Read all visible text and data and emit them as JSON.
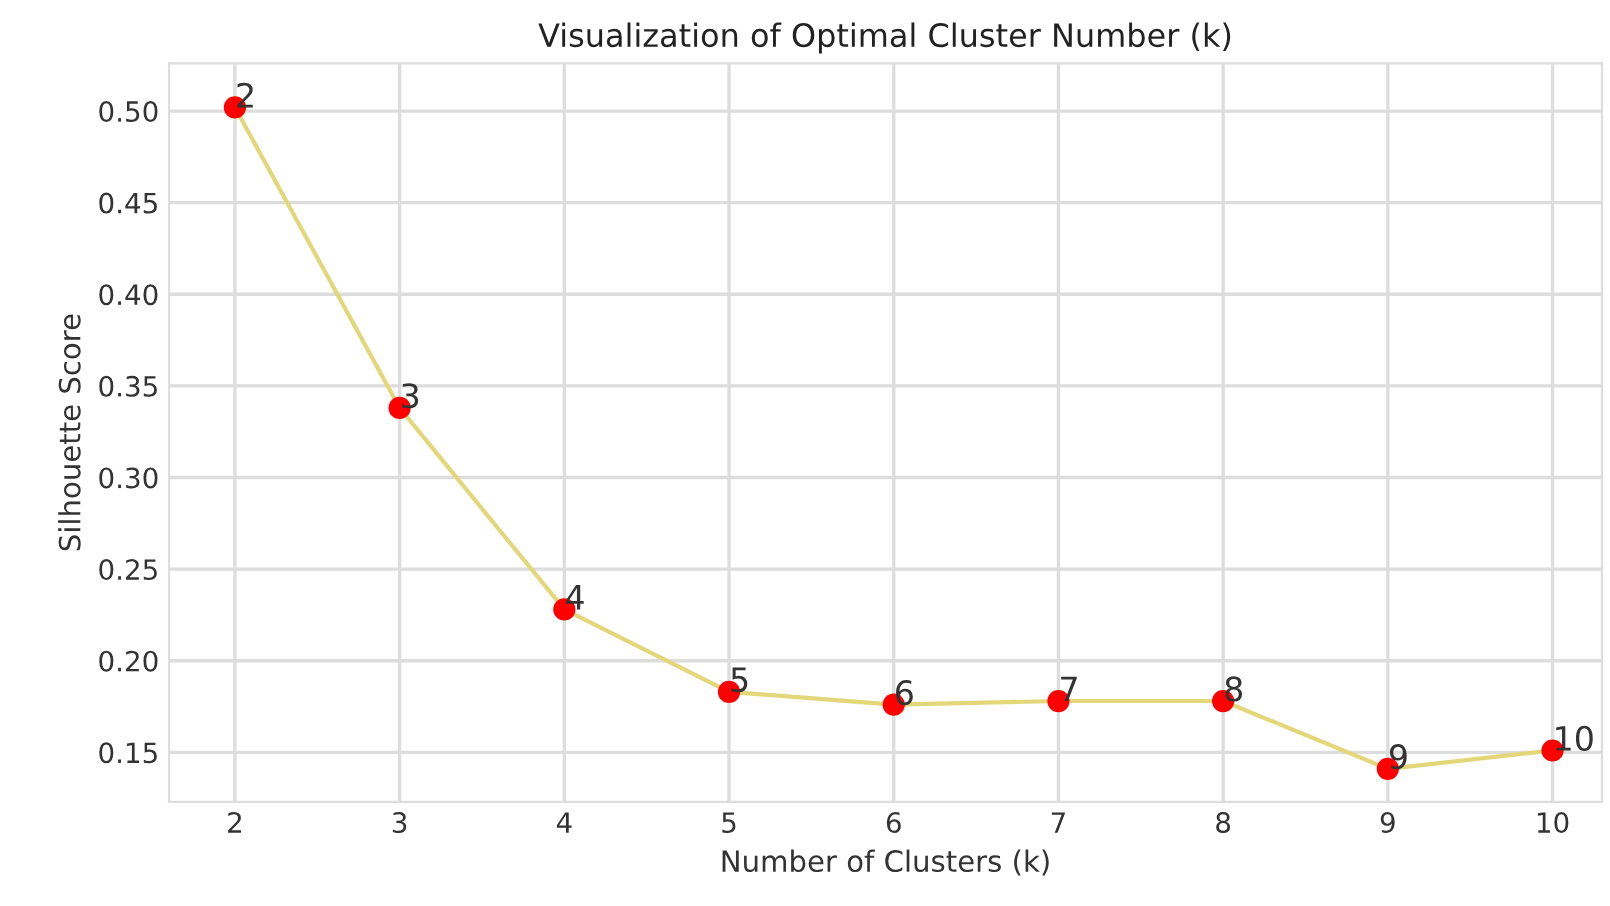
{
  "chart_data": {
    "type": "line",
    "title": "Visualization of Optimal Cluster Number (k)",
    "xlabel": "Number of Clusters (k)",
    "ylabel": "Silhouette Score",
    "x": [
      2,
      3,
      4,
      5,
      6,
      7,
      8,
      9,
      10
    ],
    "series": [
      {
        "color": "#e3d77a",
        "colors": [
          "#ff0000",
          "#ff0000",
          "#ff0000",
          "#ff0000",
          "#ff0000",
          "#ff0000",
          "#ff0000",
          "#ff0000",
          "#ff0000"
        ],
        "values": [
          0.502,
          0.338,
          0.228,
          0.183,
          0.176,
          0.178,
          0.178,
          0.141,
          0.151
        ]
      }
    ],
    "marker": "circle",
    "line_style": "solid",
    "annotations": [
      {
        "text": "2",
        "x": 2,
        "y": 0.502
      },
      {
        "text": "3",
        "x": 3,
        "y": 0.338
      },
      {
        "text": "4",
        "x": 4,
        "y": 0.228
      },
      {
        "text": "5",
        "x": 5,
        "y": 0.183
      },
      {
        "text": "6",
        "x": 6,
        "y": 0.176
      },
      {
        "text": "7",
        "x": 7,
        "y": 0.178
      },
      {
        "text": "8",
        "x": 8,
        "y": 0.178
      },
      {
        "text": "9",
        "x": 9,
        "y": 0.141
      },
      {
        "text": "10",
        "x": 10,
        "y": 0.151
      }
    ],
    "xlim": [
      1.6,
      10.3
    ],
    "xticks": [
      2,
      3,
      4,
      5,
      6,
      7,
      8,
      9,
      10
    ],
    "ylim": [
      0.123,
      0.526
    ],
    "yticks": [
      0.15,
      {
        "value": 0.2,
        "label": "0.20"
      },
      0.25,
      {
        "value": 0.3,
        "label": "0.30"
      },
      0.35,
      {
        "value": 0.4,
        "label": "0.40"
      },
      0.45,
      {
        "value": 0.5,
        "label": "0.50"
      }
    ],
    "grid": true
  }
}
